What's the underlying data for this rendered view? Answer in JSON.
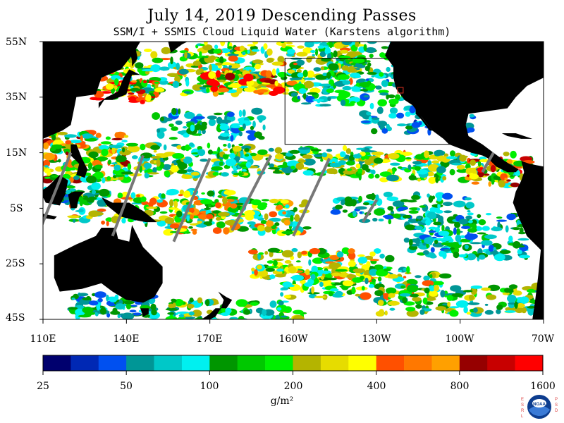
{
  "title": "July 14, 2019  Descending Passes",
  "subtitle": "SSM/I + SSMIS Cloud Liquid Water (Karstens algorithm)",
  "map": {
    "lat_labels": [
      "55N",
      "35N",
      "15N",
      "5S",
      "25S",
      "45S"
    ],
    "lon_labels": [
      "110E",
      "140E",
      "170E",
      "160W",
      "130W",
      "100W",
      "70W"
    ],
    "lat_range": [
      -45,
      55
    ],
    "lon_range": [
      110,
      290
    ],
    "land_color": "#000000",
    "no_data_color": "#ffffff",
    "swath_gap_color": "#777777",
    "region_box_color": "#000000",
    "marker_color": "#e03020"
  },
  "colorbar": {
    "tick_labels": [
      "25",
      "50",
      "100",
      "200",
      "400",
      "800",
      "1600"
    ],
    "units": "g/m²",
    "colors": [
      "#00006e",
      "#0028b4",
      "#0050f0",
      "#009696",
      "#00c8c8",
      "#00f0f0",
      "#009600",
      "#00c800",
      "#00f000",
      "#b4b400",
      "#e6dc00",
      "#ffff00",
      "#ff5000",
      "#ff7800",
      "#ffa000",
      "#960000",
      "#c80000",
      "#ff0000"
    ]
  },
  "logo": {
    "text": "NOAA",
    "left_letters": [
      "E",
      "S",
      "R",
      "L"
    ],
    "right_letters": [
      "P",
      "S",
      "D"
    ]
  }
}
